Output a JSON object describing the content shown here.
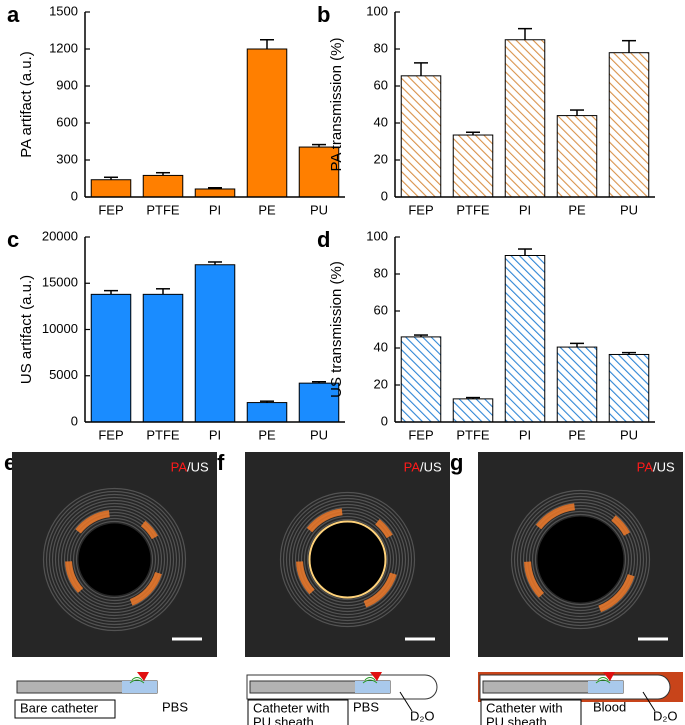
{
  "chart_data": [
    {
      "type": "bar",
      "label": "a",
      "y_label": "PA artifact (a.u.)",
      "categories": [
        "FEP",
        "PTFE",
        "PI",
        "PE",
        "PU"
      ],
      "values": [
        140,
        175,
        65,
        1200,
        405
      ],
      "errors": [
        20,
        22,
        10,
        75,
        20
      ],
      "color": "#ff7f00",
      "hatch": false,
      "ylim": [
        0,
        1500
      ],
      "yticks": [
        0,
        300,
        600,
        900,
        1200,
        1500
      ]
    },
    {
      "type": "bar",
      "label": "b",
      "y_label": "PA transmission (%)",
      "categories": [
        "FEP",
        "PTFE",
        "PI",
        "PE",
        "PU"
      ],
      "values": [
        65.5,
        33.5,
        85,
        44,
        78
      ],
      "errors": [
        7,
        1.5,
        6,
        3,
        6.5
      ],
      "color": "#d9924a",
      "hatch": true,
      "ylim": [
        0,
        100
      ],
      "yticks": [
        0,
        20,
        40,
        60,
        80,
        100
      ]
    },
    {
      "type": "bar",
      "label": "c",
      "y_label": "US artifact (a.u.)",
      "categories": [
        "FEP",
        "PTFE",
        "PI",
        "PE",
        "PU"
      ],
      "values": [
        13800,
        13800,
        17000,
        2100,
        4200
      ],
      "errors": [
        400,
        600,
        300,
        150,
        150
      ],
      "color": "#1a8cff",
      "hatch": false,
      "ylim": [
        0,
        20000
      ],
      "yticks": [
        0,
        5000,
        10000,
        15000,
        20000
      ]
    },
    {
      "type": "bar",
      "label": "d",
      "y_label": "US transmission (%)",
      "categories": [
        "FEP",
        "PTFE",
        "PI",
        "PE",
        "PU"
      ],
      "values": [
        46,
        12.5,
        90,
        40.5,
        36.5
      ],
      "errors": [
        1,
        0.7,
        3.5,
        2,
        1
      ],
      "color": "#2f86d6",
      "hatch": true,
      "ylim": [
        0,
        100
      ],
      "yticks": [
        0,
        20,
        40,
        60,
        80,
        100
      ]
    }
  ],
  "image_panels": [
    {
      "label": "e",
      "overlay": [
        "PA",
        "/US"
      ],
      "box_text": [
        "Bare catheter"
      ],
      "labels": [
        "PBS"
      ]
    },
    {
      "label": "f",
      "overlay": [
        "PA",
        "/US"
      ],
      "box_text": [
        "Catheter with",
        "PU sheath"
      ],
      "labels": [
        "PBS",
        "D₂O"
      ]
    },
    {
      "label": "g",
      "overlay": [
        "PA",
        "/US"
      ],
      "box_text": [
        "Catheter with",
        "PU sheath"
      ],
      "labels": [
        "Blood",
        "D₂O"
      ]
    }
  ]
}
